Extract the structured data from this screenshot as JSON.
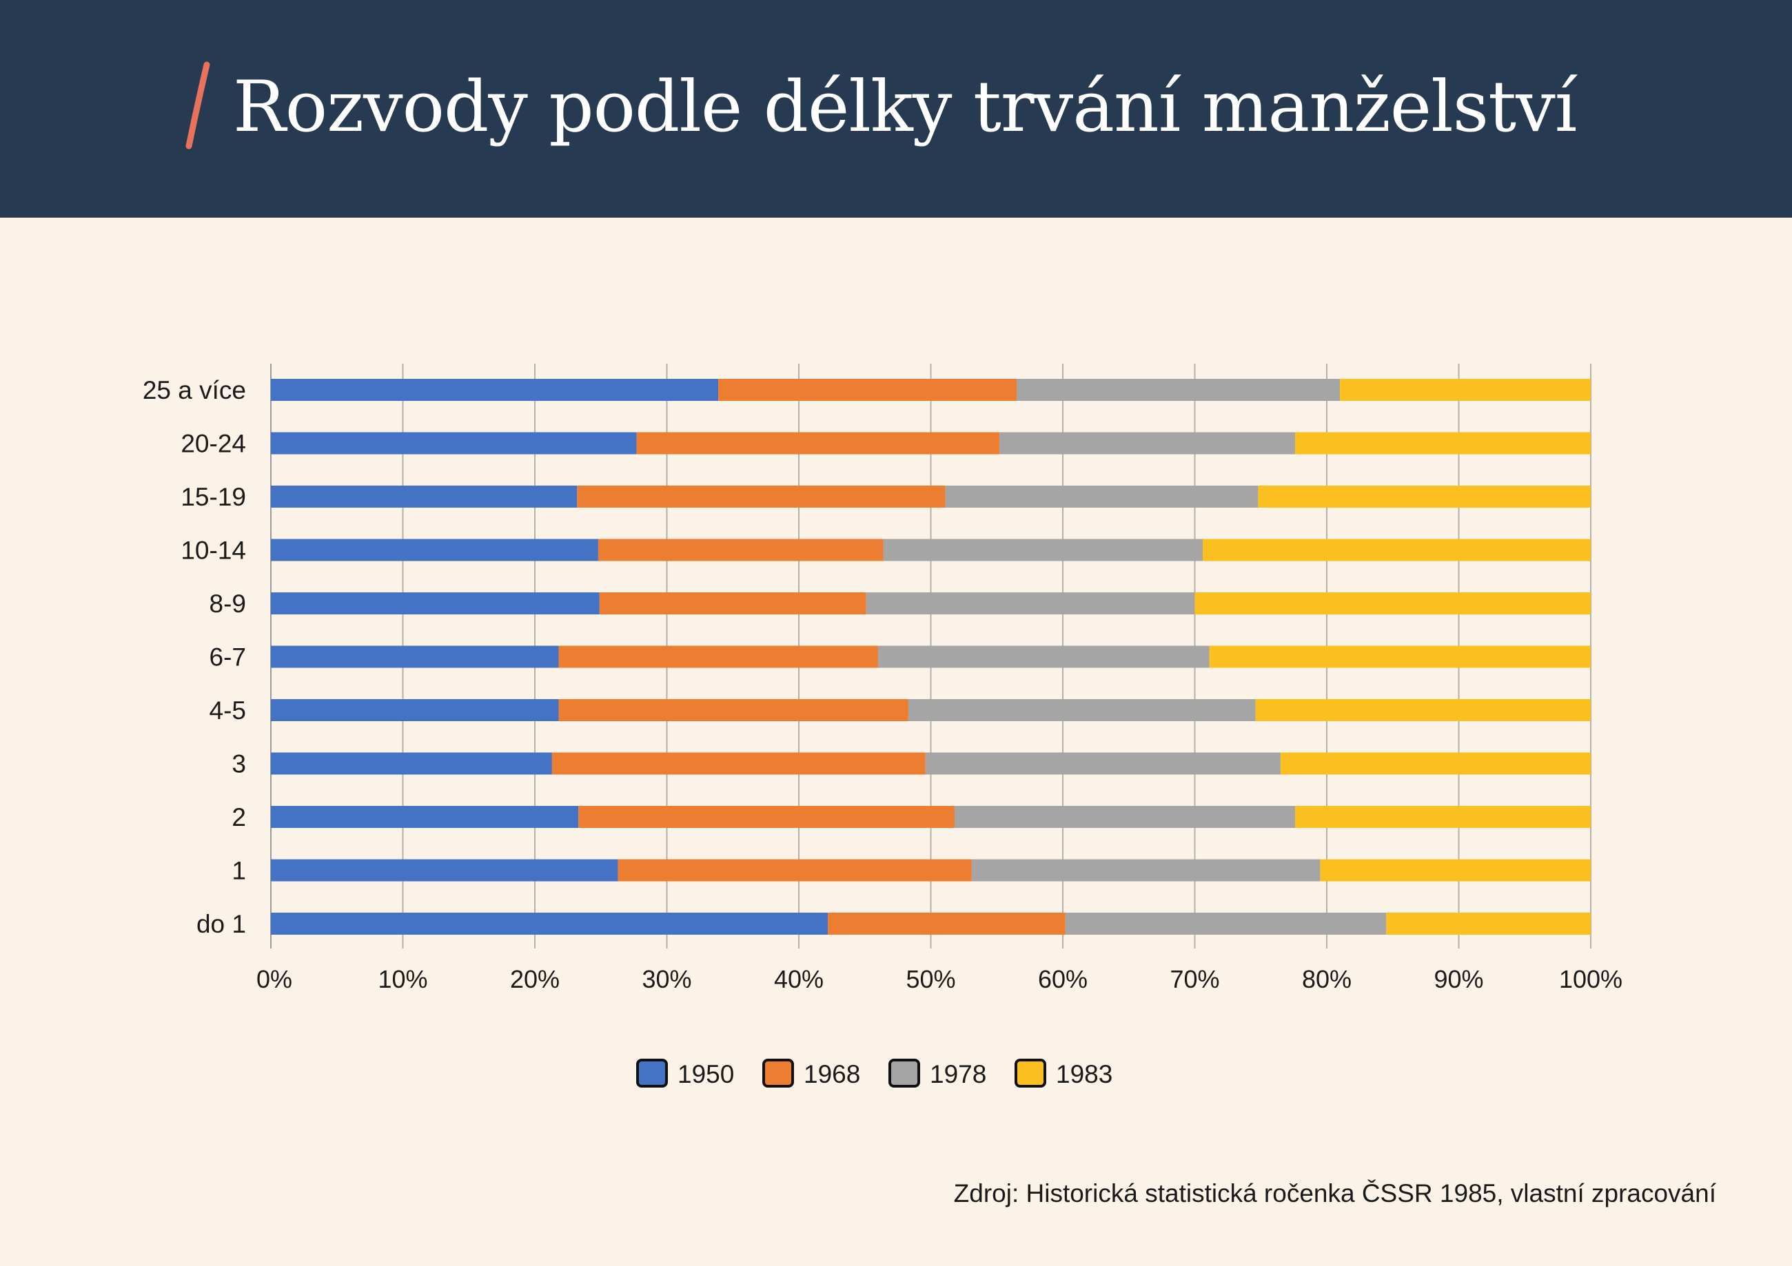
{
  "title": "Rozvody podle délky trvání manželství",
  "source": "Zdroj: Historická statistická ročenka ČSSR 1985, vlastní zpracování",
  "colors": {
    "header_bg": "#263a52",
    "page_bg": "#fcf3e8",
    "accent": "#e8735a",
    "series": [
      "#4472c4",
      "#ed7d31",
      "#a5a5a5",
      "#fbbf1f"
    ]
  },
  "chart_data": {
    "type": "bar",
    "orientation": "horizontal",
    "stacked": "percent",
    "categories": [
      "25 a více",
      "20-24",
      "15-19",
      "10-14",
      "8-9",
      "6-7",
      "4-5",
      "3",
      "2",
      "1",
      "do 1"
    ],
    "series": [
      {
        "name": "1950",
        "values": [
          33.9,
          27.7,
          23.2,
          24.8,
          24.9,
          21.8,
          21.8,
          21.3,
          23.3,
          26.3,
          42.2
        ]
      },
      {
        "name": "1968",
        "values": [
          22.6,
          27.5,
          27.9,
          21.6,
          20.2,
          24.2,
          26.5,
          28.3,
          28.5,
          26.8,
          18.0
        ]
      },
      {
        "name": "1978",
        "values": [
          24.5,
          22.4,
          23.7,
          24.2,
          24.9,
          25.1,
          26.3,
          26.9,
          25.8,
          26.4,
          24.3
        ]
      },
      {
        "name": "1983",
        "values": [
          19.0,
          22.4,
          25.2,
          29.4,
          30.0,
          28.9,
          25.4,
          23.5,
          22.4,
          20.5,
          15.5
        ]
      }
    ],
    "x_ticks": [
      "0%",
      "10%",
      "20%",
      "30%",
      "40%",
      "50%",
      "60%",
      "70%",
      "80%",
      "90%",
      "100%"
    ],
    "xlim": [
      0,
      100
    ],
    "grid": "vertical",
    "legend_position": "bottom"
  }
}
